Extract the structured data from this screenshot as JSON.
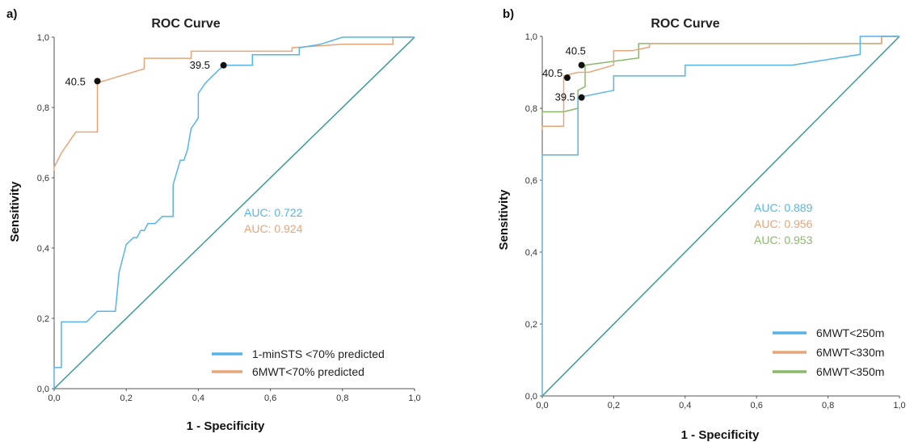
{
  "chart_data": [
    {
      "type": "line",
      "panel_label": "a)",
      "title": "ROC Curve",
      "xlabel": "1 - Specificity",
      "ylabel": "Sensitivity",
      "xlim": [
        0,
        1
      ],
      "ylim": [
        0,
        1
      ],
      "x_ticks": [
        "0,0",
        "0,2",
        "0,4",
        "0,6",
        "0,8",
        "1,0"
      ],
      "y_ticks": [
        "0,0",
        "0,2",
        "0,4",
        "0,6",
        "0,8",
        "1,0"
      ],
      "reference_line": {
        "x": [
          0,
          1
        ],
        "y": [
          0,
          1
        ],
        "color": "#3a9b94"
      },
      "series": [
        {
          "name": "1-minSTS <70% predicted",
          "color": "#56b4e9",
          "auc": "AUC: 0.722",
          "x": [
            0,
            0,
            0.02,
            0.02,
            0.09,
            0.12,
            0.17,
            0.18,
            0.18,
            0.2,
            0.2,
            0.22,
            0.23,
            0.24,
            0.25,
            0.26,
            0.28,
            0.3,
            0.33,
            0.33,
            0.35,
            0.36,
            0.37,
            0.38,
            0.4,
            0.4,
            0.42,
            0.44,
            0.46,
            0.47,
            0.55,
            0.55,
            0.68,
            0.68,
            0.74,
            0.8,
            1.0
          ],
          "y": [
            0,
            0.06,
            0.06,
            0.19,
            0.19,
            0.22,
            0.22,
            0.33,
            0.33,
            0.41,
            0.41,
            0.43,
            0.43,
            0.45,
            0.45,
            0.47,
            0.47,
            0.49,
            0.49,
            0.58,
            0.65,
            0.65,
            0.68,
            0.74,
            0.77,
            0.84,
            0.87,
            0.89,
            0.91,
            0.92,
            0.92,
            0.95,
            0.95,
            0.97,
            0.98,
            1.0,
            1.0
          ]
        },
        {
          "name": "6MWT<70% predicted",
          "color": "#e6a57a",
          "auc": "AUC: 0.924",
          "x": [
            0,
            0,
            0.02,
            0.06,
            0.12,
            0.12,
            0.25,
            0.25,
            0.38,
            0.38,
            0.66,
            0.66,
            0.8,
            0.94,
            0.94,
            1.0
          ],
          "y": [
            0.62,
            0.63,
            0.67,
            0.73,
            0.73,
            0.87,
            0.91,
            0.94,
            0.94,
            0.96,
            0.96,
            0.97,
            0.98,
            0.98,
            1.0,
            1.0
          ]
        }
      ],
      "annotations": [
        {
          "label": "40.5",
          "x": 0.12,
          "y": 0.875
        },
        {
          "label": "39.5",
          "x": 0.47,
          "y": 0.92
        }
      ],
      "legend": "bottom-right"
    },
    {
      "type": "line",
      "panel_label": "b)",
      "title": "ROC Curve",
      "xlabel": "1 - Specificity",
      "ylabel": "Sensitivity",
      "xlim": [
        0,
        1
      ],
      "ylim": [
        0,
        1
      ],
      "x_ticks": [
        "0,0",
        "0,2",
        "0,4",
        "0,6",
        "0,8",
        "1,0"
      ],
      "y_ticks": [
        "0,0",
        "0,2",
        "0,4",
        "0,6",
        "0,8",
        "1,0"
      ],
      "reference_line": {
        "x": [
          0,
          1
        ],
        "y": [
          0,
          1
        ],
        "color": "#3a9b94"
      },
      "series": [
        {
          "name": "6MWT<250m",
          "color": "#56b4e9",
          "auc": "AUC: 0.889",
          "x": [
            0,
            0,
            0.1,
            0.1,
            0.2,
            0.2,
            0.4,
            0.4,
            0.7,
            0.89,
            0.89,
            1.0
          ],
          "y": [
            0,
            0.67,
            0.67,
            0.83,
            0.85,
            0.89,
            0.89,
            0.92,
            0.92,
            0.95,
            1.0,
            1.0
          ]
        },
        {
          "name": "6MWT<330m",
          "color": "#e6a57a",
          "auc": "AUC: 0.956",
          "x": [
            0,
            0,
            0.06,
            0.06,
            0.1,
            0.13,
            0.2,
            0.2,
            0.25,
            0.3,
            0.3,
            0.95,
            0.95,
            1.0
          ],
          "y": [
            0.74,
            0.75,
            0.75,
            0.89,
            0.9,
            0.9,
            0.92,
            0.96,
            0.96,
            0.97,
            0.98,
            0.98,
            1.0,
            1.0
          ]
        },
        {
          "name": "6MWT<350m",
          "color": "#8ab86a",
          "auc": "AUC: 0.953",
          "x": [
            0,
            0,
            0.06,
            0.1,
            0.1,
            0.12,
            0.12,
            0.27,
            0.27,
            0.95,
            0.95,
            1.0
          ],
          "y": [
            0.78,
            0.79,
            0.79,
            0.8,
            0.85,
            0.86,
            0.92,
            0.94,
            0.98,
            0.98,
            1.0,
            1.0
          ]
        }
      ],
      "annotations": [
        {
          "label": "40.5",
          "x": 0.11,
          "y": 0.92
        },
        {
          "label": "40.5",
          "x": 0.07,
          "y": 0.885
        },
        {
          "label": "39.5",
          "x": 0.11,
          "y": 0.83
        }
      ],
      "legend": "bottom-right"
    }
  ]
}
